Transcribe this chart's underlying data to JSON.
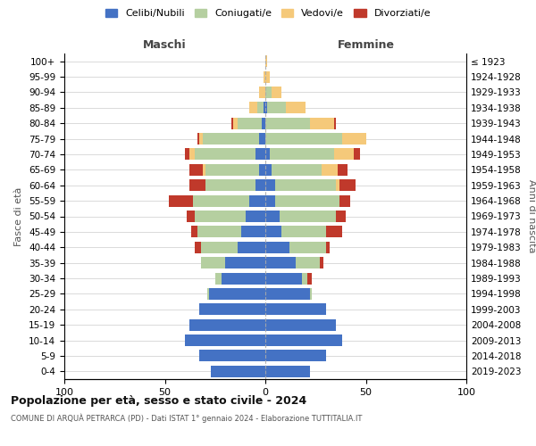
{
  "age_groups": [
    "0-4",
    "5-9",
    "10-14",
    "15-19",
    "20-24",
    "25-29",
    "30-34",
    "35-39",
    "40-44",
    "45-49",
    "50-54",
    "55-59",
    "60-64",
    "65-69",
    "70-74",
    "75-79",
    "80-84",
    "85-89",
    "90-94",
    "95-99",
    "100+"
  ],
  "birth_years": [
    "2019-2023",
    "2014-2018",
    "2009-2013",
    "2004-2008",
    "1999-2003",
    "1994-1998",
    "1989-1993",
    "1984-1988",
    "1979-1983",
    "1974-1978",
    "1969-1973",
    "1964-1968",
    "1959-1963",
    "1954-1958",
    "1949-1953",
    "1944-1948",
    "1939-1943",
    "1934-1938",
    "1929-1933",
    "1924-1928",
    "≤ 1923"
  ],
  "colors": {
    "celibi": "#4472c4",
    "coniugati": "#b5cfa0",
    "vedovi": "#f5c97a",
    "divorziati": "#c0392b"
  },
  "maschi": {
    "celibi": [
      27,
      33,
      40,
      38,
      33,
      28,
      22,
      20,
      14,
      12,
      10,
      8,
      5,
      3,
      5,
      3,
      2,
      1,
      0,
      0,
      0
    ],
    "coniugati": [
      0,
      0,
      0,
      0,
      0,
      1,
      3,
      12,
      18,
      22,
      25,
      28,
      25,
      27,
      30,
      28,
      12,
      3,
      0,
      0,
      0
    ],
    "vedovi": [
      0,
      0,
      0,
      0,
      0,
      0,
      0,
      0,
      0,
      0,
      0,
      0,
      0,
      1,
      3,
      2,
      2,
      4,
      3,
      1,
      0
    ],
    "divorziati": [
      0,
      0,
      0,
      0,
      0,
      0,
      0,
      0,
      3,
      3,
      4,
      12,
      8,
      7,
      2,
      1,
      1,
      0,
      0,
      0,
      0
    ]
  },
  "femmine": {
    "nubili": [
      22,
      30,
      38,
      35,
      30,
      22,
      18,
      15,
      12,
      8,
      7,
      5,
      5,
      3,
      2,
      0,
      0,
      1,
      0,
      0,
      0
    ],
    "coniugate": [
      0,
      0,
      0,
      0,
      0,
      1,
      3,
      12,
      18,
      22,
      28,
      32,
      30,
      25,
      32,
      38,
      22,
      9,
      3,
      0,
      0
    ],
    "vedove": [
      0,
      0,
      0,
      0,
      0,
      0,
      0,
      0,
      0,
      0,
      0,
      0,
      2,
      8,
      10,
      12,
      12,
      10,
      5,
      2,
      1
    ],
    "divorziate": [
      0,
      0,
      0,
      0,
      0,
      0,
      2,
      2,
      2,
      8,
      5,
      5,
      8,
      5,
      3,
      0,
      1,
      0,
      0,
      0,
      0
    ]
  },
  "title": "Popolazione per età, sesso e stato civile - 2024",
  "subtitle": "COMUNE DI ARQUÀ PETRARCA (PD) - Dati ISTAT 1° gennaio 2024 - Elaborazione TUTTITALIA.IT",
  "xlabel_left": "Maschi",
  "xlabel_right": "Femmine",
  "ylabel_left": "Fasce di età",
  "ylabel_right": "Anni di nascita",
  "xlim": 100,
  "legend_labels": [
    "Celibi/Nubili",
    "Coniugati/e",
    "Vedovi/e",
    "Divorziati/e"
  ]
}
